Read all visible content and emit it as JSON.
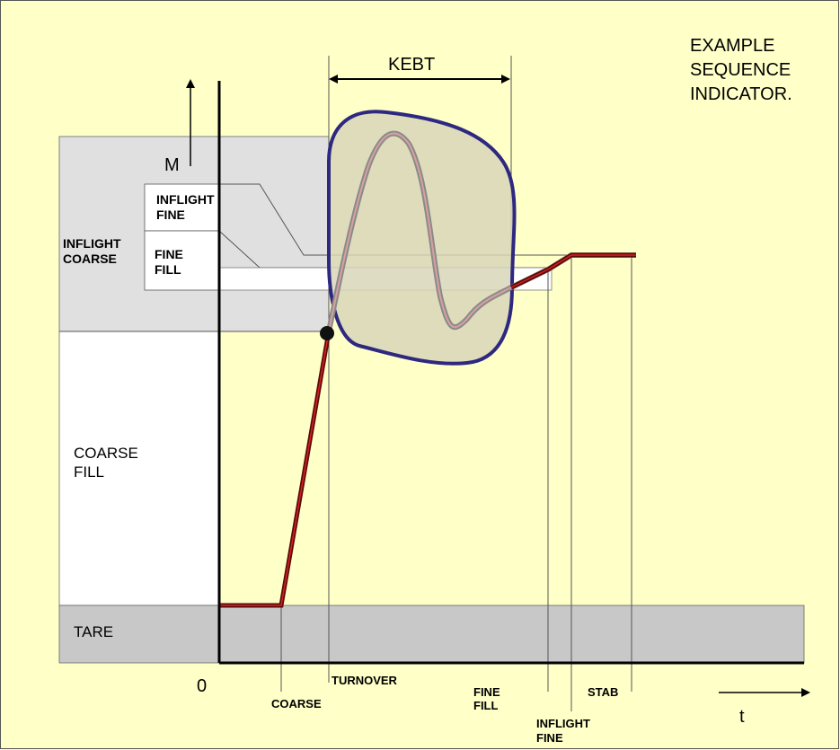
{
  "header": {
    "title_lines": [
      "EXAMPLE",
      "SEQUENCE",
      "INDICATOR."
    ]
  },
  "axes": {
    "y_label": "M",
    "x_label": "t",
    "origin_label": "0"
  },
  "bands": {
    "inflight_coarse": [
      "INFLIGHT",
      "COARSE"
    ],
    "inflight_fine": [
      "INFLIGHT",
      "FINE"
    ],
    "fine_fill": [
      "FINE",
      "FILL"
    ],
    "coarse_fill": [
      "COARSE",
      "FILL"
    ],
    "tare": "TARE"
  },
  "kebt_label": "KEBT",
  "event_labels": {
    "coarse": "COARSE",
    "turnover": "TURNOVER",
    "fine_fill": [
      "FINE",
      "FILL"
    ],
    "inflight_fine": [
      "INFLIGHT",
      "FINE"
    ],
    "stab": "STAB"
  },
  "colors": {
    "background": "#ffffc8",
    "band_gray": "#e0e0e0",
    "tare_gray": "#c8c8c8",
    "curve_dark": "#5a0a0a",
    "curve_red": "#d82020",
    "overshoot_gray": "#8a8a8a",
    "overshoot_pink": "#d8a0a0",
    "blob_fill": "#d8d6b8",
    "blob_stroke": "#2e2880"
  }
}
